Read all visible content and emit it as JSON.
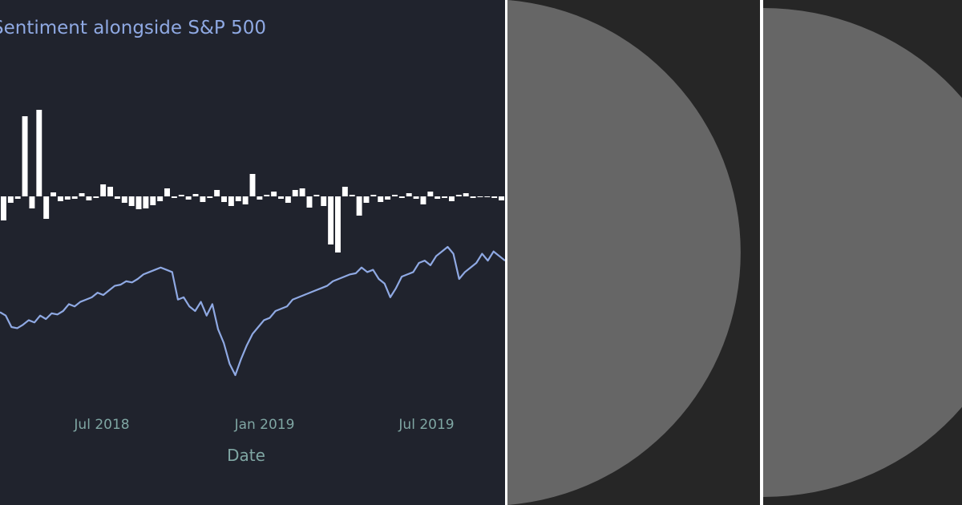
{
  "chart_data": {
    "type": "bar+line",
    "title": "Sentiment alongside S&P 500",
    "xlabel": "Date",
    "x_tick_labels": [
      "Jul 2018",
      "Jan 2019",
      "Jul 2019"
    ],
    "x_tick_dates": [
      "2018-07-01",
      "2019-01-01",
      "2019-07-01"
    ],
    "xlim": [
      "2018-02-10",
      "2019-10-07"
    ],
    "grid": false,
    "legend": "none",
    "series": [
      {
        "kind": "bar",
        "color": "#ffffff",
        "values": [
          -30,
          -8,
          -3,
          100,
          -15,
          108,
          -28,
          5,
          -6,
          -4,
          -3,
          4,
          -5,
          -2,
          15,
          12,
          -3,
          -8,
          -12,
          -16,
          -15,
          -11,
          -6,
          10,
          -2,
          2,
          -4,
          3,
          -7,
          -2,
          8,
          -7,
          -12,
          -6,
          -10,
          28,
          -4,
          2,
          6,
          -3,
          -8,
          8,
          10,
          -14,
          2,
          -12,
          -60,
          -70,
          12,
          2,
          -24,
          -8,
          2,
          -7,
          -4,
          2,
          -2,
          4,
          -3,
          -10,
          6,
          -3,
          -2,
          -6,
          2,
          4,
          -2,
          -1,
          -1,
          -2,
          -5
        ]
      },
      {
        "kind": "line",
        "name": "S&P 500",
        "color": "#8fa9e3",
        "values": [
          2735,
          2720,
          2670,
          2665,
          2680,
          2700,
          2690,
          2720,
          2705,
          2730,
          2725,
          2740,
          2770,
          2760,
          2780,
          2790,
          2800,
          2820,
          2810,
          2830,
          2850,
          2855,
          2870,
          2865,
          2880,
          2900,
          2910,
          2920,
          2930,
          2920,
          2910,
          2790,
          2800,
          2760,
          2740,
          2780,
          2720,
          2770,
          2660,
          2600,
          2510,
          2460,
          2530,
          2590,
          2640,
          2670,
          2700,
          2710,
          2740,
          2750,
          2760,
          2790,
          2800,
          2810,
          2820,
          2830,
          2840,
          2850,
          2870,
          2880,
          2890,
          2900,
          2905,
          2930,
          2910,
          2920,
          2880,
          2860,
          2800,
          2840,
          2890,
          2900,
          2910,
          2950,
          2960,
          2940,
          2980,
          3000,
          3020,
          2990,
          2880,
          2910,
          2930,
          2950,
          2990,
          2960,
          3000,
          2980,
          2960
        ]
      }
    ]
  }
}
